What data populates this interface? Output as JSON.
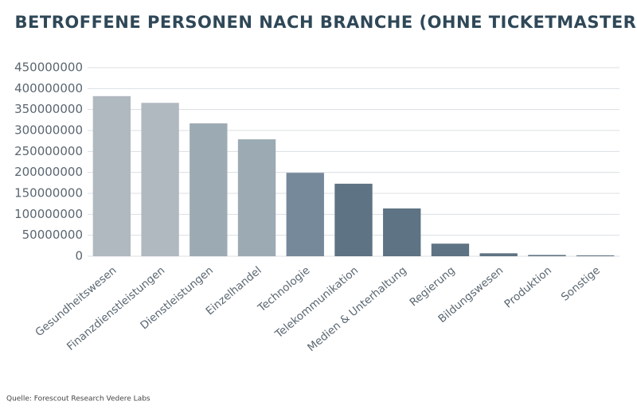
{
  "chart_data": {
    "type": "bar",
    "title": "BETROFFENE PERSONEN NACH BRANCHE (OHNE TICKETMASTER)",
    "categories": [
      "Gesundheitswesen",
      "Finanzdienstleistungen",
      "Dienstleistungen",
      "Einzelhandel",
      "Technologie",
      "Telekommunikation",
      "Medien & Unterhaltung",
      "Regierung",
      "Bildungswesen",
      "Produktion",
      "Sonstige"
    ],
    "values": [
      382000000,
      366000000,
      317000000,
      279000000,
      199000000,
      173000000,
      114000000,
      30000000,
      7000000,
      3000000,
      2000000
    ],
    "colors": [
      "#b1b9c0",
      "#b1b9c0",
      "#9caab3",
      "#9caab3",
      "#76899a",
      "#5e7383",
      "#5e7383",
      "#5e7383",
      "#5e7383",
      "#5e7383",
      "#5e7383"
    ],
    "ylim": [
      0,
      450000000
    ],
    "yticks": [
      0,
      50000000,
      100000000,
      150000000,
      200000000,
      250000000,
      300000000,
      350000000,
      400000000,
      450000000
    ],
    "grid": true,
    "source": "Quelle: Forescout Research Vedere Labs"
  }
}
